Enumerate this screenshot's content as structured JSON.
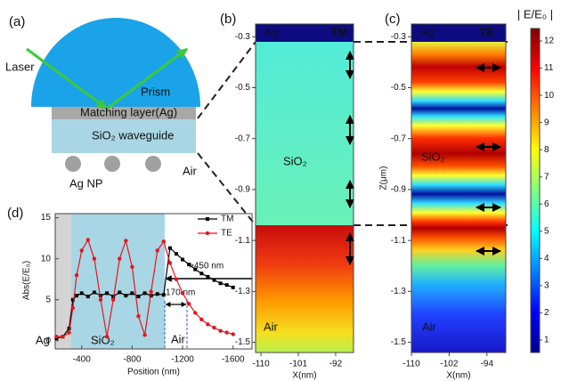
{
  "diagram": {
    "panel_label": "(a)",
    "laser": "Laser",
    "prism": "Prism",
    "matching_layer": "Matching layer(Ag)",
    "waveguide": "SiO₂ waveguide",
    "nanoparticle": "Ag NP",
    "air": "Air"
  },
  "chart_data": [
    {
      "type": "heatmap",
      "panel_label": "(b)",
      "x_label": "X(nm)",
      "xlim": [
        -111.3,
        -87.7
      ],
      "xticks": [
        -110,
        -101,
        -92
      ],
      "ylim": [
        -1.54,
        -0.25
      ],
      "yticks": [
        -0.3,
        -0.5,
        -0.7,
        -0.9,
        -1.1,
        -1.3,
        -1.5
      ],
      "labels": [
        "Ag",
        "TM",
        "SiO₂",
        "Air"
      ]
    },
    {
      "type": "heatmap",
      "panel_label": "(c)",
      "x_label": "X(nm)",
      "y_label": "Z(μm)",
      "xlim": [
        -110,
        -90
      ],
      "xticks": [
        -110,
        -102,
        -94
      ],
      "ylim": [
        -1.54,
        -0.25
      ],
      "yticks": [
        -0.3,
        -0.5,
        -0.7,
        -0.9,
        -1.1,
        -1.3,
        -1.5
      ],
      "labels": [
        "Ag",
        "TE",
        "SiO₂",
        "Air"
      ],
      "colorbar": {
        "title": "| E/E₀ |",
        "lim": [
          0.54,
          12.46
        ],
        "ticks": [
          1,
          2,
          3,
          4,
          5,
          6,
          7,
          8,
          9,
          10,
          11,
          12
        ]
      }
    },
    {
      "type": "line",
      "panel_label": "(d)",
      "x_label": "Position (nm)",
      "y_label": "Abs(E/E₀)",
      "xlim": [
        -190,
        -1750
      ],
      "xticks": [
        -400,
        -800,
        -1200,
        -1600
      ],
      "ylim": [
        -1,
        15.5
      ],
      "yticks": [
        0,
        5,
        10,
        15
      ],
      "x": [
        -200,
        -250,
        -300,
        -330,
        -360,
        -400,
        -450,
        -500,
        -550,
        -600,
        -650,
        -700,
        -750,
        -800,
        -850,
        -900,
        -950,
        -1000,
        -1050,
        -1100,
        -1150,
        -1200,
        -1250,
        -1300,
        -1350,
        -1400,
        -1450,
        -1500,
        -1550,
        -1600
      ],
      "series": [
        {
          "name": "TM",
          "color": "#000000",
          "marker": "square",
          "values": [
            0.3,
            0.5,
            1.5,
            5,
            5.5,
            5.8,
            5.4,
            5.9,
            5.5,
            5.8,
            5.4,
            5.9,
            5.5,
            5.8,
            5.4,
            5.8,
            5.5,
            5.7,
            5.6,
            11.3,
            10.6,
            9.9,
            9.3,
            8.7,
            8.2,
            7.8,
            7.4,
            7.0,
            6.8,
            6.5
          ]
        },
        {
          "name": "TE",
          "color": "#e8141c",
          "marker": "circle",
          "values": [
            0.5,
            0.5,
            1,
            4,
            8,
            11,
            12.3,
            10,
            5,
            0.5,
            5,
            10,
            12.2,
            9,
            3,
            0.7,
            6,
            11,
            12.1,
            9.5,
            7.5,
            5.8,
            4.5,
            3.4,
            2.6,
            2.0,
            1.6,
            1.2,
            1.0,
            0.8
          ]
        }
      ],
      "region_labels": [
        "Ag",
        "SiO₂",
        "Air"
      ],
      "annotations": [
        ">450 nm",
        "170 nm"
      ]
    }
  ]
}
